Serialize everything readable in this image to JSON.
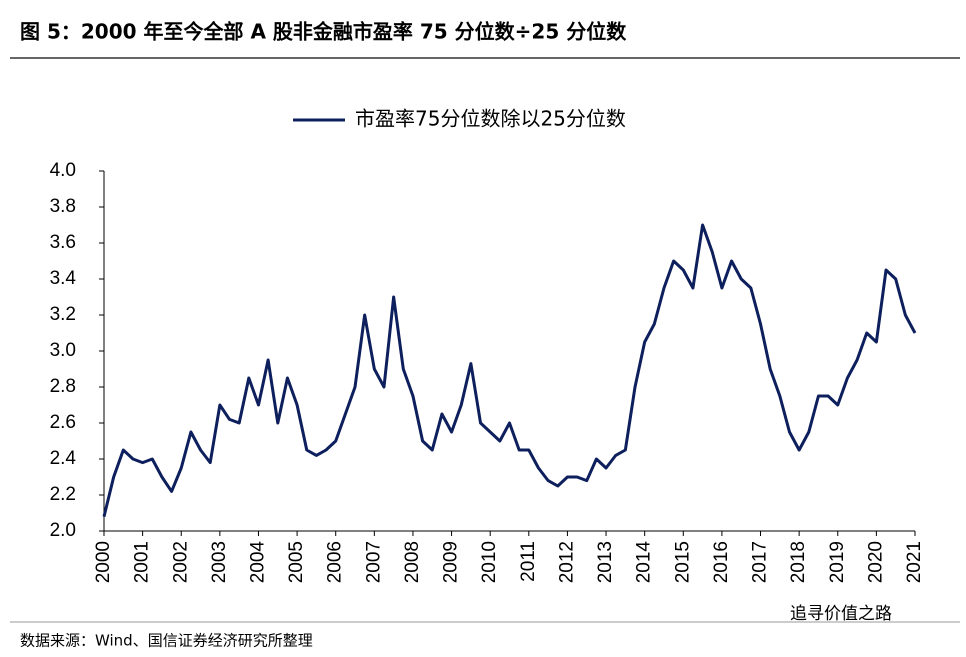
{
  "header": {
    "title": "图 5：2000 年至今全部 A 股非金融市盈率 75 分位数÷25 分位数"
  },
  "chart_data": {
    "type": "line",
    "series": [
      {
        "name": "市盈率75分位数除以25分位数",
        "color": "#0d1f5c",
        "values": [
          2.08,
          2.3,
          2.45,
          2.4,
          2.38,
          2.4,
          2.3,
          2.22,
          2.35,
          2.55,
          2.45,
          2.38,
          2.7,
          2.62,
          2.6,
          2.85,
          2.7,
          2.95,
          2.6,
          2.85,
          2.7,
          2.45,
          2.42,
          2.45,
          2.5,
          2.65,
          2.8,
          3.2,
          2.9,
          2.8,
          3.3,
          2.9,
          2.75,
          2.5,
          2.45,
          2.65,
          2.55,
          2.7,
          2.93,
          2.6,
          2.55,
          2.5,
          2.6,
          2.45,
          2.45,
          2.35,
          2.28,
          2.25,
          2.3,
          2.3,
          2.28,
          2.4,
          2.35,
          2.42,
          2.45,
          2.8,
          3.05,
          3.15,
          3.35,
          3.5,
          3.45,
          3.35,
          3.7,
          3.55,
          3.35,
          3.5,
          3.4,
          3.35,
          3.15,
          2.9,
          2.75,
          2.55,
          2.45,
          2.55,
          2.75,
          2.75,
          2.7,
          2.85,
          2.95,
          3.1,
          3.05,
          3.45,
          3.4,
          3.2,
          3.1
        ]
      }
    ],
    "x": [
      2000,
      2000.25,
      2000.5,
      2000.75,
      2001,
      2001.25,
      2001.5,
      2001.75,
      2002,
      2002.25,
      2002.5,
      2002.75,
      2003,
      2003.25,
      2003.5,
      2003.75,
      2004,
      2004.25,
      2004.5,
      2004.75,
      2005,
      2005.25,
      2005.5,
      2005.75,
      2006,
      2006.25,
      2006.5,
      2006.75,
      2007,
      2007.25,
      2007.5,
      2007.75,
      2008,
      2008.25,
      2008.5,
      2008.75,
      2009,
      2009.25,
      2009.5,
      2009.75,
      2010,
      2010.25,
      2010.5,
      2010.75,
      2011,
      2011.25,
      2011.5,
      2011.75,
      2012,
      2012.25,
      2012.5,
      2012.75,
      2013,
      2013.25,
      2013.5,
      2013.75,
      2014,
      2014.25,
      2014.5,
      2014.75,
      2015,
      2015.25,
      2015.5,
      2015.75,
      2016,
      2016.25,
      2016.5,
      2016.75,
      2017,
      2017.25,
      2017.5,
      2017.75,
      2018,
      2018.25,
      2018.5,
      2018.75,
      2019,
      2019.25,
      2019.5,
      2019.75,
      2020,
      2020.25,
      2020.5,
      2020.75,
      2021
    ],
    "xlim": [
      2000,
      2021
    ],
    "xticks": [
      2000,
      2001,
      2002,
      2003,
      2004,
      2005,
      2006,
      2007,
      2008,
      2009,
      2010,
      2011,
      2012,
      2013,
      2014,
      2015,
      2016,
      2017,
      2018,
      2019,
      2020,
      2021
    ],
    "ylim": [
      2.0,
      4.0
    ],
    "yticks": [
      {
        "value": 2.0,
        "label": "2.0"
      },
      {
        "value": 2.2,
        "label": "2.2"
      },
      {
        "value": 2.4,
        "label": "2.4"
      },
      {
        "value": 2.6,
        "label": "2.6"
      },
      {
        "value": 2.8,
        "label": "2.8"
      },
      {
        "value": 3.0,
        "label": "3.0"
      },
      {
        "value": 3.2,
        "label": "3.2"
      },
      {
        "value": 3.4,
        "label": "3.4"
      },
      {
        "value": 3.6,
        "label": "3.6"
      },
      {
        "value": 3.8,
        "label": "3.8"
      },
      {
        "value": 4.0,
        "label": "4.0"
      }
    ],
    "legend": "top"
  },
  "footer": {
    "source": "数据来源：Wind、国信证券经济研究所整理",
    "watermark": "追寻价值之路"
  }
}
